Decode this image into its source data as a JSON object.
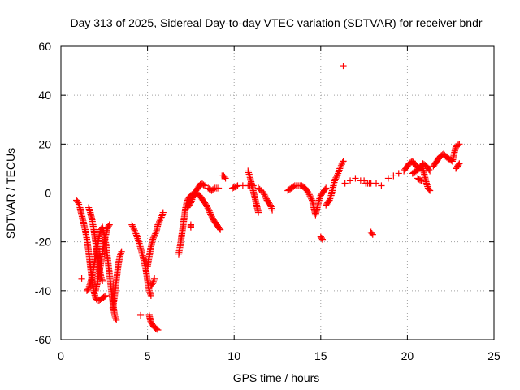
{
  "chart_data": {
    "type": "scatter",
    "title": "Day 313 of 2025, Sidereal Day-to-day VTEC variation (SDTVAR) for receiver bndr",
    "xlabel": "GPS time / hours",
    "ylabel": "SDTVAR / TECUs",
    "xlim": [
      0,
      25
    ],
    "ylim": [
      -60,
      60
    ],
    "xticks": [
      "0",
      "5",
      "10",
      "15",
      "20",
      "25"
    ],
    "yticks": [
      "-60",
      "-40",
      "-20",
      "0",
      "20",
      "40",
      "60"
    ],
    "grid": true,
    "marker": "plus",
    "color": "#ff0000",
    "series": [
      {
        "name": "SDTVAR",
        "points": [
          [
            0.9,
            -3
          ],
          [
            1.0,
            -4
          ],
          [
            1.1,
            -6
          ],
          [
            1.2,
            -9
          ],
          [
            1.3,
            -12
          ],
          [
            1.4,
            -15
          ],
          [
            1.5,
            -19
          ],
          [
            1.6,
            -24
          ],
          [
            1.7,
            -30
          ],
          [
            1.8,
            -36
          ],
          [
            1.9,
            -40
          ],
          [
            2.0,
            -43
          ],
          [
            2.1,
            -44
          ],
          [
            2.2,
            -44
          ],
          [
            2.4,
            -43
          ],
          [
            2.6,
            -42
          ],
          [
            1.5,
            -40
          ],
          [
            1.6,
            -39
          ],
          [
            1.7,
            -37
          ],
          [
            1.8,
            -34
          ],
          [
            1.9,
            -30
          ],
          [
            2.0,
            -26
          ],
          [
            2.1,
            -22
          ],
          [
            2.2,
            -18
          ],
          [
            2.3,
            -15
          ],
          [
            2.4,
            -14
          ],
          [
            2.5,
            -17
          ],
          [
            2.6,
            -21
          ],
          [
            2.7,
            -27
          ],
          [
            2.8,
            -33
          ],
          [
            2.9,
            -39
          ],
          [
            3.0,
            -45
          ],
          [
            3.1,
            -50
          ],
          [
            3.2,
            -52
          ],
          [
            1.6,
            -6
          ],
          [
            1.7,
            -8
          ],
          [
            1.8,
            -11
          ],
          [
            1.9,
            -15
          ],
          [
            2.0,
            -20
          ],
          [
            2.1,
            -25
          ],
          [
            2.2,
            -30
          ],
          [
            2.3,
            -34
          ],
          [
            2.4,
            -36
          ],
          [
            2.0,
            -40
          ],
          [
            2.1,
            -37
          ],
          [
            2.2,
            -33
          ],
          [
            2.3,
            -29
          ],
          [
            2.4,
            -24
          ],
          [
            2.5,
            -20
          ],
          [
            2.6,
            -17
          ],
          [
            2.7,
            -14
          ],
          [
            2.8,
            -13
          ],
          [
            3.0,
            -47
          ],
          [
            3.1,
            -42
          ],
          [
            3.2,
            -36
          ],
          [
            3.3,
            -30
          ],
          [
            3.4,
            -26
          ],
          [
            3.5,
            -24
          ],
          [
            1.2,
            -35
          ],
          [
            4.6,
            -50
          ],
          [
            4.1,
            -13
          ],
          [
            4.3,
            -16
          ],
          [
            4.5,
            -20
          ],
          [
            4.7,
            -25
          ],
          [
            4.9,
            -31
          ],
          [
            5.0,
            -36
          ],
          [
            5.1,
            -40
          ],
          [
            5.2,
            -42
          ],
          [
            5.0,
            -30
          ],
          [
            5.1,
            -26
          ],
          [
            5.2,
            -22
          ],
          [
            5.3,
            -19
          ],
          [
            5.5,
            -16
          ],
          [
            5.6,
            -13
          ],
          [
            5.8,
            -10
          ],
          [
            5.9,
            -8
          ],
          [
            5.1,
            -50
          ],
          [
            5.2,
            -53
          ],
          [
            5.4,
            -55
          ],
          [
            5.6,
            -56
          ],
          [
            5.2,
            -38
          ],
          [
            5.3,
            -37
          ],
          [
            5.4,
            -35
          ],
          [
            6.8,
            -25
          ],
          [
            6.9,
            -21
          ],
          [
            7.0,
            -16
          ],
          [
            7.1,
            -11
          ],
          [
            7.2,
            -6
          ],
          [
            7.3,
            -3
          ],
          [
            7.5,
            -1
          ],
          [
            7.7,
            0
          ],
          [
            7.9,
            2
          ],
          [
            8.1,
            4
          ],
          [
            8.3,
            3
          ],
          [
            7.3,
            -6
          ],
          [
            7.5,
            -4
          ],
          [
            7.6,
            -2
          ],
          [
            7.8,
            0
          ],
          [
            8.0,
            -1
          ],
          [
            8.2,
            -3
          ],
          [
            8.4,
            -5
          ],
          [
            8.6,
            -8
          ],
          [
            8.8,
            -11
          ],
          [
            9.0,
            -13
          ],
          [
            9.2,
            -15
          ],
          [
            8.5,
            2
          ],
          [
            8.7,
            1
          ],
          [
            8.9,
            2
          ],
          [
            9.1,
            2
          ],
          [
            7.5,
            -13
          ],
          [
            7.5,
            -14
          ],
          [
            9.3,
            7
          ],
          [
            9.4,
            7
          ],
          [
            9.5,
            6
          ],
          [
            9.9,
            2
          ],
          [
            10.2,
            3
          ],
          [
            10.5,
            3
          ],
          [
            10.8,
            3
          ],
          [
            11.1,
            3
          ],
          [
            11.4,
            2
          ],
          [
            11.7,
            0
          ],
          [
            11.9,
            -3
          ],
          [
            12.1,
            -5
          ],
          [
            12.2,
            -7
          ],
          [
            10.8,
            9
          ],
          [
            10.9,
            7
          ],
          [
            11.0,
            4
          ],
          [
            11.1,
            1
          ],
          [
            11.2,
            -2
          ],
          [
            11.3,
            -5
          ],
          [
            11.4,
            -8
          ],
          [
            13.1,
            1
          ],
          [
            13.3,
            2
          ],
          [
            13.5,
            3
          ],
          [
            13.7,
            3
          ],
          [
            13.9,
            3
          ],
          [
            14.1,
            2
          ],
          [
            14.3,
            0
          ],
          [
            14.5,
            -3
          ],
          [
            14.6,
            -6
          ],
          [
            14.7,
            -9
          ],
          [
            14.8,
            -6
          ],
          [
            14.9,
            -3
          ],
          [
            15.0,
            -1
          ],
          [
            15.2,
            1
          ],
          [
            15.3,
            2
          ],
          [
            15.0,
            -18
          ],
          [
            15.1,
            -19
          ],
          [
            15.3,
            -5
          ],
          [
            15.5,
            -3
          ],
          [
            15.6,
            -1
          ],
          [
            15.8,
            5
          ],
          [
            16.0,
            8
          ],
          [
            16.1,
            10
          ],
          [
            16.3,
            13
          ],
          [
            16.3,
            52
          ],
          [
            16.4,
            4
          ],
          [
            16.7,
            5
          ],
          [
            17.0,
            6
          ],
          [
            17.3,
            5
          ],
          [
            17.6,
            4
          ],
          [
            17.9,
            4
          ],
          [
            18.2,
            4
          ],
          [
            18.5,
            3
          ],
          [
            17.5,
            5
          ],
          [
            17.8,
            4
          ],
          [
            17.9,
            -16
          ],
          [
            18.0,
            -17
          ],
          [
            18.9,
            6
          ],
          [
            19.2,
            7
          ],
          [
            19.5,
            8
          ],
          [
            19.8,
            9
          ],
          [
            20.0,
            11
          ],
          [
            20.1,
            12
          ],
          [
            20.3,
            13
          ],
          [
            20.5,
            11
          ],
          [
            20.7,
            10
          ],
          [
            20.9,
            12
          ],
          [
            21.1,
            11
          ],
          [
            21.3,
            9
          ],
          [
            20.3,
            8
          ],
          [
            20.5,
            9
          ],
          [
            20.7,
            10
          ],
          [
            20.9,
            10
          ],
          [
            21.0,
            7
          ],
          [
            21.1,
            4
          ],
          [
            21.2,
            2
          ],
          [
            21.3,
            1
          ],
          [
            20.6,
            6
          ],
          [
            20.8,
            5
          ],
          [
            21.5,
            11
          ],
          [
            21.7,
            13
          ],
          [
            21.9,
            15
          ],
          [
            22.1,
            16
          ],
          [
            22.2,
            15
          ],
          [
            22.4,
            14
          ],
          [
            22.6,
            13
          ],
          [
            22.7,
            16
          ],
          [
            22.8,
            19
          ],
          [
            23.0,
            20
          ],
          [
            22.8,
            10
          ],
          [
            22.9,
            11
          ],
          [
            23.0,
            12
          ]
        ]
      }
    ]
  }
}
